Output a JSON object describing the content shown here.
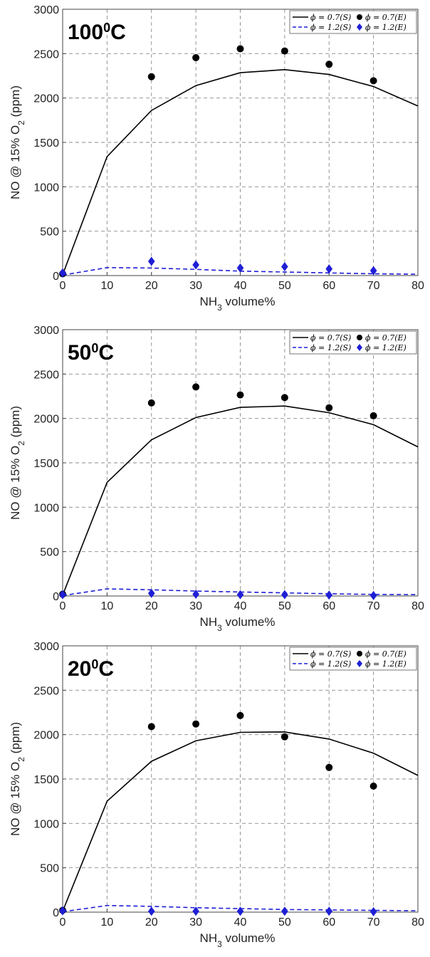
{
  "chart_data": [
    {
      "type": "line",
      "title": "100",
      "title_superscript": "0",
      "title_suffix": "C",
      "xlabel": "NH",
      "xlabel_sub": "3",
      "xlabel_suffix": " volume%",
      "ylabel": "NO @ 15% O",
      "ylabel_sub": "2",
      "ylabel_suffix": " (ppm)",
      "xlim": [
        0,
        80
      ],
      "ylim": [
        0,
        3000
      ],
      "xticks": [
        0,
        10,
        20,
        30,
        40,
        50,
        60,
        70,
        80
      ],
      "yticks": [
        0,
        500,
        1000,
        1500,
        2000,
        2500,
        3000
      ],
      "grid": true,
      "legend_position": "top-right",
      "series": [
        {
          "name": "ϕ = 0.7(S)",
          "kind": "line",
          "style": "solid",
          "color": "#000000",
          "x": [
            0,
            10,
            20,
            30,
            40,
            50,
            60,
            70,
            80
          ],
          "y": [
            10,
            1340,
            1860,
            2140,
            2285,
            2320,
            2265,
            2130,
            1910
          ]
        },
        {
          "name": "ϕ = 0.7(E)",
          "kind": "scatter",
          "marker": "circle",
          "color": "#000000",
          "x": [
            0,
            20,
            30,
            40,
            50,
            60,
            70
          ],
          "y": [
            20,
            2240,
            2455,
            2555,
            2530,
            2380,
            2195
          ]
        },
        {
          "name": "ϕ = 1.2(S)",
          "kind": "line",
          "style": "dashed",
          "color": "#1f1fd6",
          "x": [
            0,
            10,
            20,
            30,
            40,
            50,
            60,
            70,
            80
          ],
          "y": [
            5,
            90,
            85,
            70,
            50,
            40,
            30,
            20,
            15
          ]
        },
        {
          "name": "ϕ = 1.2(E)",
          "kind": "scatter",
          "marker": "diamond",
          "color": "#1f1fd6",
          "x": [
            0,
            20,
            30,
            40,
            50,
            60,
            70
          ],
          "y": [
            30,
            160,
            120,
            85,
            100,
            75,
            55
          ]
        }
      ]
    },
    {
      "type": "line",
      "title": "50",
      "title_superscript": "0",
      "title_suffix": "C",
      "xlabel": "NH",
      "xlabel_sub": "3",
      "xlabel_suffix": " volume%",
      "ylabel": "NO @ 15% O",
      "ylabel_sub": "2",
      "ylabel_suffix": " (ppm)",
      "xlim": [
        0,
        80
      ],
      "ylim": [
        0,
        3000
      ],
      "xticks": [
        0,
        10,
        20,
        30,
        40,
        50,
        60,
        70,
        80
      ],
      "yticks": [
        0,
        500,
        1000,
        1500,
        2000,
        2500,
        3000
      ],
      "grid": true,
      "legend_position": "top-right",
      "series": [
        {
          "name": "ϕ = 0.7(S)",
          "kind": "line",
          "style": "solid",
          "color": "#000000",
          "x": [
            0,
            10,
            20,
            30,
            40,
            50,
            60,
            70,
            80
          ],
          "y": [
            10,
            1280,
            1760,
            2010,
            2125,
            2140,
            2065,
            1930,
            1680
          ]
        },
        {
          "name": "ϕ = 0.7(E)",
          "kind": "scatter",
          "marker": "circle",
          "color": "#000000",
          "x": [
            0,
            20,
            30,
            40,
            50,
            60,
            70
          ],
          "y": [
            20,
            2175,
            2355,
            2265,
            2235,
            2120,
            2030
          ]
        },
        {
          "name": "ϕ = 1.2(S)",
          "kind": "line",
          "style": "dashed",
          "color": "#1f1fd6",
          "x": [
            0,
            10,
            20,
            30,
            40,
            50,
            60,
            70,
            80
          ],
          "y": [
            5,
            80,
            70,
            55,
            45,
            35,
            25,
            18,
            15
          ]
        },
        {
          "name": "ϕ = 1.2(E)",
          "kind": "scatter",
          "marker": "diamond",
          "color": "#1f1fd6",
          "x": [
            0,
            20,
            30,
            40,
            50,
            60,
            70
          ],
          "y": [
            15,
            30,
            20,
            15,
            15,
            10,
            5
          ]
        }
      ]
    },
    {
      "type": "line",
      "title": "20",
      "title_superscript": "0",
      "title_suffix": "C",
      "xlabel": "NH",
      "xlabel_sub": "3",
      "xlabel_suffix": " volume%",
      "ylabel": "NO @ 15% O",
      "ylabel_sub": "2",
      "ylabel_suffix": " (ppm)",
      "xlim": [
        0,
        80
      ],
      "ylim": [
        0,
        3000
      ],
      "xticks": [
        0,
        10,
        20,
        30,
        40,
        50,
        60,
        70,
        80
      ],
      "yticks": [
        0,
        500,
        1000,
        1500,
        2000,
        2500,
        3000
      ],
      "grid": true,
      "legend_position": "top-right",
      "series": [
        {
          "name": "ϕ = 0.7(S)",
          "kind": "line",
          "style": "solid",
          "color": "#000000",
          "x": [
            0,
            10,
            20,
            30,
            40,
            50,
            60,
            70,
            80
          ],
          "y": [
            10,
            1250,
            1700,
            1930,
            2025,
            2030,
            1950,
            1790,
            1540
          ]
        },
        {
          "name": "ϕ = 0.7(E)",
          "kind": "scatter",
          "marker": "circle",
          "color": "#000000",
          "x": [
            0,
            20,
            30,
            40,
            50,
            60,
            70
          ],
          "y": [
            20,
            2090,
            2120,
            2215,
            1975,
            1630,
            1420
          ]
        },
        {
          "name": "ϕ = 1.2(S)",
          "kind": "line",
          "style": "dashed",
          "color": "#1f1fd6",
          "x": [
            0,
            10,
            20,
            30,
            40,
            50,
            60,
            70,
            80
          ],
          "y": [
            5,
            75,
            65,
            50,
            40,
            30,
            25,
            20,
            15
          ]
        },
        {
          "name": "ϕ = 1.2(E)",
          "kind": "scatter",
          "marker": "diamond",
          "color": "#1f1fd6",
          "x": [
            0,
            20,
            30,
            40,
            50,
            60,
            70
          ],
          "y": [
            15,
            10,
            10,
            10,
            10,
            10,
            5
          ]
        }
      ]
    }
  ]
}
